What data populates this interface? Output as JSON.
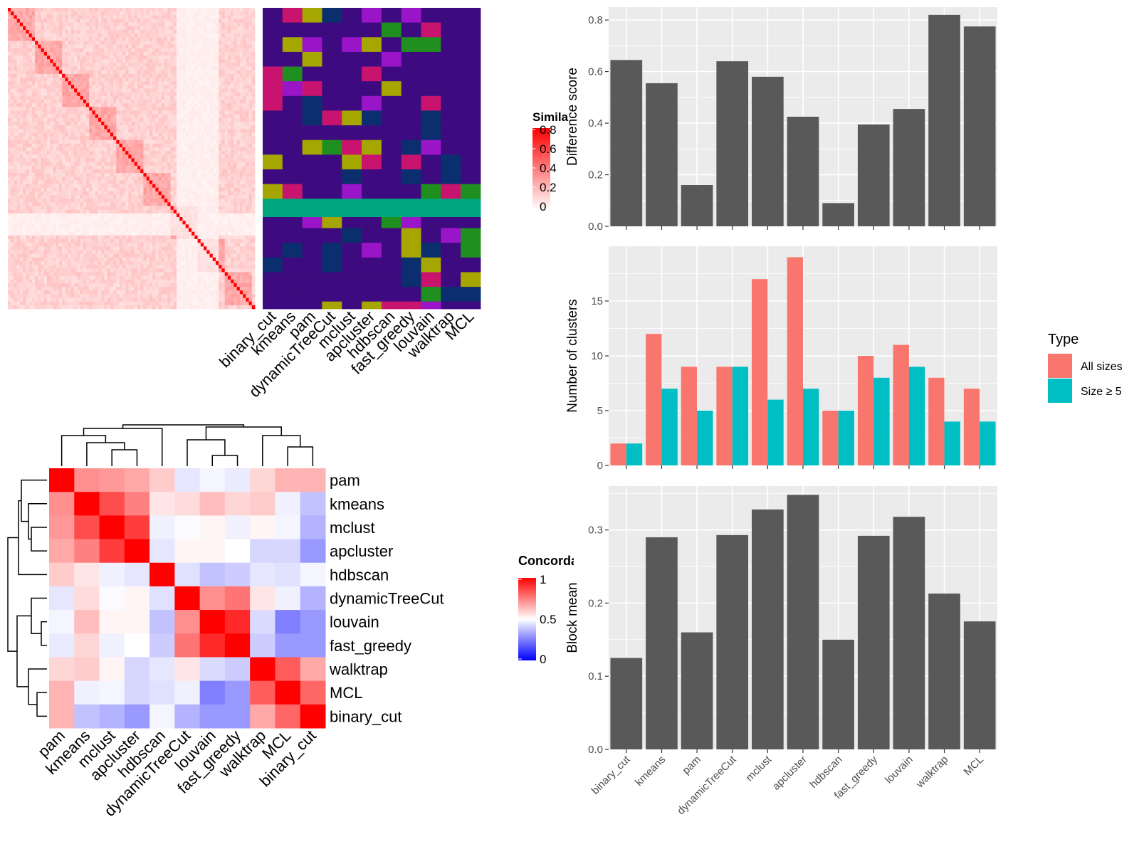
{
  "colors": {
    "panel_bg": "#ebebeb",
    "grid": "#ffffff",
    "bar_dark": "#595959",
    "all_sizes": "#f8766d",
    "size_ge5": "#00bfc4",
    "red": "#ff0000",
    "white": "#ffffff",
    "blue": "#0000ff"
  },
  "similarity_legend": {
    "title": "Simila",
    "ticks": [
      "0.8",
      "0.6",
      "0.4",
      "0.2",
      "0"
    ]
  },
  "membership_heatmap": {
    "methods": [
      "binary_cut",
      "kmeans",
      "pam",
      "dynamicTreeCut",
      "mclust",
      "apcluster",
      "hdbscan",
      "fast_greedy",
      "louvain",
      "walktrap",
      "MCL"
    ]
  },
  "concordance": {
    "legend_title": "Concorda",
    "legend_ticks": [
      "1",
      "0.5",
      "0"
    ],
    "labels": [
      "pam",
      "kmeans",
      "mclust",
      "apcluster",
      "hdbscan",
      "dynamicTreeCut",
      "louvain",
      "fast_greedy",
      "walktrap",
      "MCL",
      "binary_cut"
    ]
  },
  "chart_data": [
    {
      "type": "bar",
      "categories": [
        "binary_cut",
        "kmeans",
        "pam",
        "dynamicTreeCut",
        "mclust",
        "apcluster",
        "hdbscan",
        "fast_greedy",
        "louvain",
        "walktrap",
        "MCL"
      ],
      "values": [
        0.645,
        0.555,
        0.16,
        0.64,
        0.58,
        0.425,
        0.09,
        0.395,
        0.455,
        0.82,
        0.775
      ],
      "ylabel": "Difference score",
      "ylim": [
        0,
        0.85
      ],
      "yticks": [
        "0.0",
        "0.2",
        "0.4",
        "0.6",
        "0.8"
      ]
    },
    {
      "type": "bar",
      "categories": [
        "binary_cut",
        "kmeans",
        "pam",
        "dynamicTreeCut",
        "mclust",
        "apcluster",
        "hdbscan",
        "fast_greedy",
        "louvain",
        "walktrap",
        "MCL"
      ],
      "series": [
        {
          "name": "All sizes",
          "values": [
            2,
            12,
            9,
            9,
            17,
            19,
            5,
            10,
            11,
            8,
            7
          ]
        },
        {
          "name": "Size ≥ 5",
          "values": [
            2,
            7,
            5,
            9,
            6,
            7,
            5,
            8,
            9,
            4,
            4
          ]
        }
      ],
      "ylabel": "Number of clusters",
      "ylim": [
        0,
        20
      ],
      "yticks": [
        "0",
        "5",
        "10",
        "15"
      ],
      "legend_title": "Type",
      "legend_position": "right"
    },
    {
      "type": "bar",
      "categories": [
        "binary_cut",
        "kmeans",
        "pam",
        "dynamicTreeCut",
        "mclust",
        "apcluster",
        "hdbscan",
        "fast_greedy",
        "louvain",
        "walktrap",
        "MCL"
      ],
      "values": [
        0.125,
        0.29,
        0.16,
        0.293,
        0.328,
        0.348,
        0.15,
        0.292,
        0.318,
        0.213,
        0.175
      ],
      "ylabel": "Block mean",
      "ylim": [
        0,
        0.36
      ],
      "yticks": [
        "0.0",
        "0.1",
        "0.2",
        "0.3"
      ]
    },
    {
      "type": "heatmap",
      "rows": [
        "pam",
        "kmeans",
        "mclust",
        "apcluster",
        "hdbscan",
        "dynamicTreeCut",
        "louvain",
        "fast_greedy",
        "walktrap",
        "MCL",
        "binary_cut"
      ],
      "columns": [
        "pam",
        "kmeans",
        "mclust",
        "apcluster",
        "hdbscan",
        "dynamicTreeCut",
        "louvain",
        "fast_greedy",
        "walktrap",
        "MCL",
        "binary_cut"
      ],
      "values": [
        [
          1.0,
          0.72,
          0.7,
          0.67,
          0.6,
          0.45,
          0.48,
          0.46,
          0.58,
          0.65,
          0.65
        ],
        [
          0.72,
          1.0,
          0.85,
          0.75,
          0.55,
          0.57,
          0.63,
          0.58,
          0.6,
          0.47,
          0.38
        ],
        [
          0.7,
          0.85,
          1.0,
          0.88,
          0.47,
          0.49,
          0.52,
          0.47,
          0.52,
          0.48,
          0.35
        ],
        [
          0.67,
          0.75,
          0.88,
          1.0,
          0.45,
          0.52,
          0.52,
          0.5,
          0.42,
          0.42,
          0.3
        ],
        [
          0.6,
          0.55,
          0.47,
          0.45,
          1.0,
          0.44,
          0.38,
          0.4,
          0.45,
          0.44,
          0.48
        ],
        [
          0.45,
          0.57,
          0.49,
          0.52,
          0.44,
          1.0,
          0.72,
          0.77,
          0.55,
          0.47,
          0.35
        ],
        [
          0.48,
          0.63,
          0.52,
          0.52,
          0.38,
          0.72,
          1.0,
          0.92,
          0.43,
          0.25,
          0.3
        ],
        [
          0.46,
          0.58,
          0.47,
          0.5,
          0.4,
          0.77,
          0.92,
          1.0,
          0.4,
          0.3,
          0.3
        ],
        [
          0.58,
          0.6,
          0.52,
          0.42,
          0.45,
          0.55,
          0.43,
          0.4,
          1.0,
          0.82,
          0.67
        ],
        [
          0.65,
          0.47,
          0.48,
          0.42,
          0.44,
          0.47,
          0.25,
          0.3,
          0.82,
          1.0,
          0.8
        ],
        [
          0.65,
          0.38,
          0.35,
          0.3,
          0.48,
          0.35,
          0.3,
          0.3,
          0.67,
          0.8,
          1.0
        ]
      ]
    }
  ]
}
